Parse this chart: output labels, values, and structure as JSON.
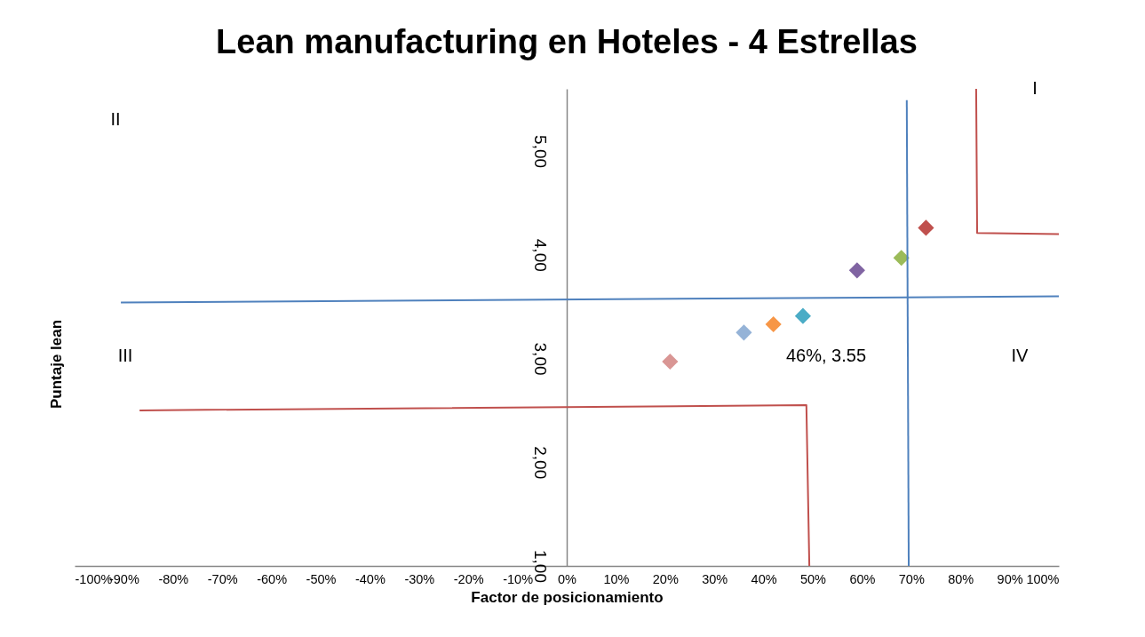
{
  "chart_data": {
    "type": "scatter",
    "title": "Lean manufacturing en Hoteles - 4 Estrellas",
    "xlabel": "Factor de posicionamiento",
    "ylabel": "Puntaje lean",
    "xlim": [
      -100,
      100
    ],
    "xticks": [
      {
        "value": -100,
        "label": "-100%"
      },
      {
        "value": -90,
        "label": "-90%"
      },
      {
        "value": -80,
        "label": "-80%"
      },
      {
        "value": -70,
        "label": "-70%"
      },
      {
        "value": -60,
        "label": "-60%"
      },
      {
        "value": -50,
        "label": "-50%"
      },
      {
        "value": -40,
        "label": "-40%"
      },
      {
        "value": -30,
        "label": "-30%"
      },
      {
        "value": -20,
        "label": "-20%"
      },
      {
        "value": -10,
        "label": "-10%"
      },
      {
        "value": 0,
        "label": "0%"
      },
      {
        "value": 10,
        "label": "10%"
      },
      {
        "value": 20,
        "label": "20%"
      },
      {
        "value": 30,
        "label": "30%"
      },
      {
        "value": 40,
        "label": "40%"
      },
      {
        "value": 50,
        "label": "50%"
      },
      {
        "value": 60,
        "label": "60%"
      },
      {
        "value": 70,
        "label": "70%"
      },
      {
        "value": 80,
        "label": "80%"
      },
      {
        "value": 90,
        "label": "90%"
      },
      {
        "value": 100,
        "label": "100%"
      }
    ],
    "ylim": [
      1,
      5.6
    ],
    "yticks": [
      {
        "value": 1,
        "label": "1,00"
      },
      {
        "value": 2,
        "label": "2,00"
      },
      {
        "value": 3,
        "label": "3,00"
      },
      {
        "value": 4,
        "label": "4,00"
      },
      {
        "value": 5,
        "label": "5,00"
      }
    ],
    "marker": "diamond",
    "series": [
      {
        "x": [
          21,
          36,
          42,
          48,
          59,
          68,
          73
        ],
        "values": [
          2.97,
          3.25,
          3.33,
          3.41,
          3.85,
          3.97,
          4.26
        ],
        "colors": [
          "#d99694",
          "#95b3d7",
          "#f79646",
          "#4bacc6",
          "#8064a2",
          "#9bbb59",
          "#c0504d"
        ]
      },
      {
        "type": "line",
        "marker": "none",
        "color": "#4f81bd",
        "x": [
          -90.6,
          100
        ],
        "values": [
          3.54,
          3.6
        ]
      },
      {
        "type": "line",
        "marker": "none",
        "color": "#4f81bd",
        "x": [
          69.1,
          69.5
        ],
        "values": [
          5.49,
          1
        ]
      },
      {
        "type": "line",
        "marker": "none",
        "color": "#c0504d",
        "x": [
          -86.8,
          48.7,
          49.3
        ],
        "values": [
          2.5,
          2.55,
          1
        ]
      },
      {
        "type": "line",
        "marker": "none",
        "color": "#c0504d",
        "x": [
          83.2,
          83.4,
          100
        ],
        "values": [
          5.6,
          4.21,
          4.2
        ]
      }
    ],
    "annotations": [
      "I",
      "II",
      "III",
      "IV",
      "46%, 3.55"
    ]
  }
}
